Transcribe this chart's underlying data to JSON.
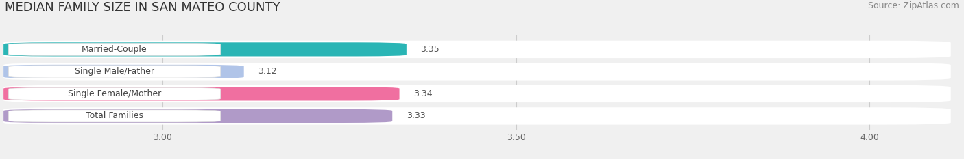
{
  "title": "MEDIAN FAMILY SIZE IN SAN MATEO COUNTY",
  "source": "Source: ZipAtlas.com",
  "categories": [
    "Married-Couple",
    "Single Male/Father",
    "Single Female/Mother",
    "Total Families"
  ],
  "values": [
    3.35,
    3.12,
    3.34,
    3.33
  ],
  "bar_colors": [
    "#2ab5b5",
    "#b0c4e8",
    "#f06fa0",
    "#b09ac8"
  ],
  "xlim_left": 2.77,
  "xlim_right": 4.12,
  "xticks": [
    3.0,
    3.5,
    4.0
  ],
  "xtick_labels": [
    "3.00",
    "3.50",
    "4.00"
  ],
  "title_fontsize": 13,
  "source_fontsize": 9,
  "label_fontsize": 9,
  "value_fontsize": 9,
  "background_color": "#f0f0f0",
  "bar_bg_color": "#ffffff",
  "row_bg_color": "#f0f0f0"
}
